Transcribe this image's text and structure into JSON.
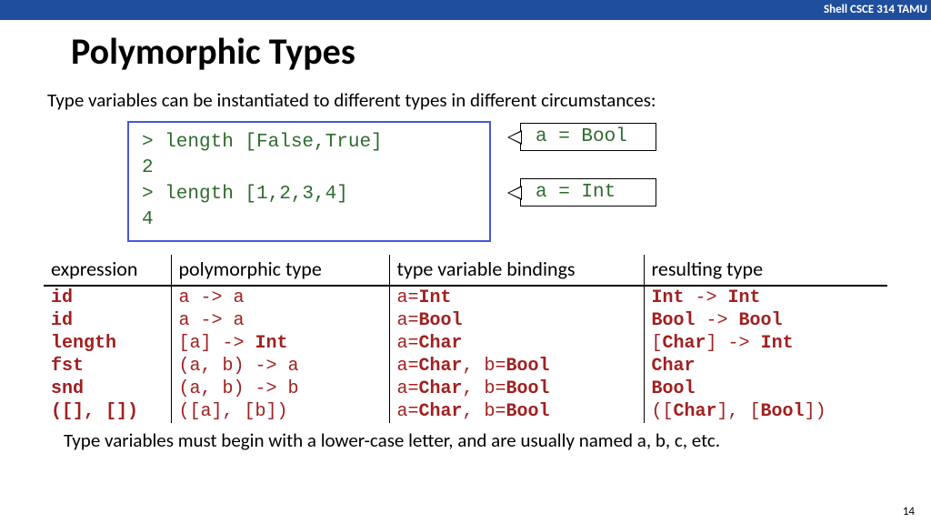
{
  "header": {
    "course": "Shell CSCE 314 TAMU"
  },
  "title": "Polymorphic Types",
  "intro": "Type variables can be instantiated to different types in different circumstances:",
  "code_lines": [
    "> length [False,True]",
    "2",
    "> length [1,2,3,4]",
    "4"
  ],
  "callouts": [
    "a = Bool",
    "a = Int"
  ],
  "table": {
    "headers": [
      "expression",
      "polymorphic type",
      "type variable bindings",
      "resulting type"
    ],
    "rows": [
      {
        "expr": "id",
        "poly": [
          [
            "tv",
            "a"
          ],
          [
            "arrow",
            " -> "
          ],
          [
            "tv",
            "a"
          ]
        ],
        "bind": [
          [
            "bind",
            "a="
          ],
          [
            "type",
            "Int"
          ]
        ],
        "res": [
          [
            "type",
            "Int"
          ],
          [
            "arrow",
            " -> "
          ],
          [
            "type",
            "Int"
          ]
        ]
      },
      {
        "expr": "id",
        "poly": [
          [
            "tv",
            "a"
          ],
          [
            "arrow",
            " -> "
          ],
          [
            "tv",
            "a"
          ]
        ],
        "bind": [
          [
            "bind",
            "a="
          ],
          [
            "type",
            "Bool"
          ]
        ],
        "res": [
          [
            "type",
            "Bool"
          ],
          [
            "arrow",
            " -> "
          ],
          [
            "type",
            "Bool"
          ]
        ]
      },
      {
        "expr": "length",
        "poly": [
          [
            "tv",
            "[a]"
          ],
          [
            "arrow",
            " -> "
          ],
          [
            "type",
            "Int"
          ]
        ],
        "bind": [
          [
            "bind",
            "a="
          ],
          [
            "type",
            "Char"
          ]
        ],
        "res": [
          [
            "tv",
            "["
          ],
          [
            "type",
            "Char"
          ],
          [
            "tv",
            "]"
          ],
          [
            "arrow",
            " -> "
          ],
          [
            "type",
            "Int"
          ]
        ]
      },
      {
        "expr": "fst",
        "poly": [
          [
            "tv",
            "(a, b)"
          ],
          [
            "arrow",
            " -> "
          ],
          [
            "tv",
            "a"
          ]
        ],
        "bind": [
          [
            "bind",
            "a="
          ],
          [
            "type",
            "Char"
          ],
          [
            "bind",
            ", b="
          ],
          [
            "type",
            "Bool"
          ]
        ],
        "res": [
          [
            "type",
            "Char"
          ]
        ]
      },
      {
        "expr": "snd",
        "poly": [
          [
            "tv",
            "(a, b)"
          ],
          [
            "arrow",
            " -> "
          ],
          [
            "tv",
            "b"
          ]
        ],
        "bind": [
          [
            "bind",
            "a="
          ],
          [
            "type",
            "Char"
          ],
          [
            "bind",
            ", b="
          ],
          [
            "type",
            "Bool"
          ]
        ],
        "res": [
          [
            "type",
            "Bool"
          ]
        ]
      },
      {
        "expr": "([], [])",
        "poly": [
          [
            "tv",
            "([a], [b])"
          ]
        ],
        "bind": [
          [
            "bind",
            "a="
          ],
          [
            "type",
            "Char"
          ],
          [
            "bind",
            ", b="
          ],
          [
            "type",
            "Bool"
          ]
        ],
        "res": [
          [
            "tv",
            "(["
          ],
          [
            "type",
            "Char"
          ],
          [
            "tv",
            "], ["
          ],
          [
            "type",
            "Bool"
          ],
          [
            "tv",
            "])"
          ]
        ]
      }
    ]
  },
  "footer": "Type variables must begin with a lower-case letter, and are usually named a, b, c, etc.",
  "page": "14"
}
